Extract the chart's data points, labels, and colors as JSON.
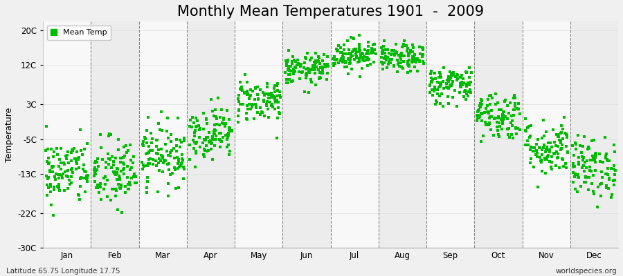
{
  "title": "Monthly Mean Temperatures 1901  -  2009",
  "ylabel": "Temperature",
  "yticks": [
    -30,
    -22,
    -13,
    -5,
    3,
    12,
    20
  ],
  "ytick_labels": [
    "-30C",
    "-22C",
    "-13C",
    "-5C",
    "3C",
    "12C",
    "20C"
  ],
  "ylim": [
    -30,
    22
  ],
  "months": [
    "Jan",
    "Feb",
    "Mar",
    "Apr",
    "May",
    "Jun",
    "Jul",
    "Aug",
    "Sep",
    "Oct",
    "Nov",
    "Dec"
  ],
  "dot_color": "#00bb00",
  "dot_size": 5,
  "bg_light": "#ececec",
  "bg_white": "#f8f8f8",
  "title_fontsize": 15,
  "axis_label_fontsize": 9,
  "tick_fontsize": 8.5,
  "legend_label": "Mean Temp",
  "footer_left": "Latitude 65.75 Longitude 17.75",
  "footer_right": "worldspecies.org",
  "num_years": 109,
  "monthly_means": [
    -12.5,
    -13.0,
    -8.5,
    -3.5,
    4.0,
    11.0,
    14.5,
    13.5,
    7.5,
    0.5,
    -7.0,
    -11.5
  ],
  "monthly_stds": [
    3.8,
    4.2,
    3.5,
    3.0,
    2.5,
    1.8,
    1.8,
    1.6,
    2.2,
    2.8,
    3.2,
    3.5
  ]
}
